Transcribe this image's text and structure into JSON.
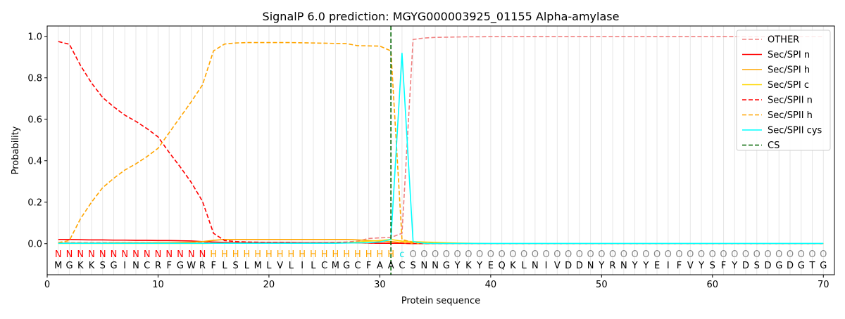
{
  "chart_data": {
    "type": "line",
    "title": "SignalP 6.0 prediction: MGYG000003925_01155 Alpha-amylase",
    "xlabel": "Protein sequence",
    "ylabel": "Probability",
    "xlim": [
      0,
      71
    ],
    "ylim": [
      -0.15,
      1.05
    ],
    "xticks": [
      0,
      10,
      20,
      30,
      40,
      50,
      60,
      70
    ],
    "yticks": [
      0.0,
      0.2,
      0.4,
      0.6,
      0.8,
      1.0
    ],
    "ytick_labels": [
      "0.0",
      "0.2",
      "0.4",
      "0.6",
      "0.8",
      "1.0"
    ],
    "grid": "vertical lines at each residue",
    "legend_position": "top-right",
    "sequence": [
      "M",
      "G",
      "K",
      "K",
      "S",
      "G",
      "I",
      "N",
      "C",
      "R",
      "F",
      "G",
      "W",
      "R",
      "F",
      "L",
      "S",
      "L",
      "M",
      "L",
      "V",
      "L",
      "I",
      "L",
      "C",
      "M",
      "G",
      "C",
      "F",
      "A",
      "A",
      "C",
      "S",
      "N",
      "N",
      "G",
      "Y",
      "K",
      "Y",
      "E",
      "Q",
      "K",
      "L",
      "N",
      "I",
      "V",
      "D",
      "D",
      "N",
      "Y",
      "R",
      "N",
      "Y",
      "Y",
      "E",
      "I",
      "F",
      "V",
      "Y",
      "S",
      "F",
      "Y",
      "D",
      "S",
      "D",
      "G",
      "D",
      "G",
      "T",
      "G"
    ],
    "region_labels": [
      "N",
      "N",
      "N",
      "N",
      "N",
      "N",
      "N",
      "N",
      "N",
      "N",
      "N",
      "N",
      "N",
      "N",
      "H",
      "H",
      "H",
      "H",
      "H",
      "H",
      "H",
      "H",
      "H",
      "H",
      "H",
      "H",
      "H",
      "H",
      "H",
      "H",
      "H",
      "C",
      "O",
      "O",
      "O",
      "O",
      "O",
      "O",
      "O",
      "O",
      "O",
      "O",
      "O",
      "O",
      "O",
      "O",
      "O",
      "O",
      "O",
      "O",
      "O",
      "O",
      "O",
      "O",
      "O",
      "O",
      "O",
      "O",
      "O",
      "O",
      "O",
      "O",
      "O",
      "O",
      "O",
      "O",
      "O",
      "O",
      "O",
      "O"
    ],
    "region_colors": {
      "N": "#ff0000",
      "H": "#ffa500",
      "C": "#00e5e5",
      "O": "#888888"
    },
    "cleavage_site": 31,
    "series": [
      {
        "name": "OTHER",
        "color": "#f08080",
        "dash": "dashed",
        "values": [
          0.005,
          0.005,
          0.005,
          0.005,
          0.005,
          0.005,
          0.005,
          0.005,
          0.005,
          0.005,
          0.005,
          0.005,
          0.005,
          0.005,
          0.005,
          0.005,
          0.005,
          0.005,
          0.005,
          0.005,
          0.005,
          0.005,
          0.005,
          0.005,
          0.005,
          0.006,
          0.008,
          0.012,
          0.025,
          0.028,
          0.03,
          0.05,
          0.985,
          0.992,
          0.995,
          0.996,
          0.997,
          0.998,
          0.998,
          0.999,
          0.999,
          0.999,
          0.999,
          0.999,
          0.999,
          0.999,
          0.999,
          0.999,
          0.999,
          0.999,
          0.999,
          0.999,
          0.999,
          0.999,
          0.999,
          0.999,
          0.999,
          0.999,
          0.999,
          0.999,
          0.999,
          0.999,
          0.999,
          0.999,
          0.999,
          0.999,
          0.999,
          0.999,
          0.999,
          0.999
        ]
      },
      {
        "name": "Sec/SPI n",
        "color": "#ff0000",
        "dash": "solid",
        "values": [
          0.02,
          0.02,
          0.019,
          0.018,
          0.018,
          0.017,
          0.017,
          0.016,
          0.016,
          0.015,
          0.015,
          0.014,
          0.013,
          0.01,
          0.008,
          0.006,
          0.005,
          0.005,
          0.005,
          0.005,
          0.005,
          0.005,
          0.005,
          0.005,
          0.005,
          0.005,
          0.005,
          0.004,
          0.003,
          0.002,
          0.002,
          0.002,
          0,
          0,
          0,
          0,
          0,
          0,
          0,
          0,
          0,
          0,
          0,
          0,
          0,
          0,
          0,
          0,
          0,
          0,
          0,
          0,
          0,
          0,
          0,
          0,
          0,
          0,
          0,
          0,
          0,
          0,
          0,
          0,
          0,
          0,
          0,
          0,
          0,
          0
        ]
      },
      {
        "name": "Sec/SPI h",
        "color": "#ffa500",
        "dash": "solid",
        "values": [
          0.003,
          0.003,
          0.003,
          0.003,
          0.003,
          0.004,
          0.004,
          0.004,
          0.004,
          0.005,
          0.005,
          0.006,
          0.007,
          0.01,
          0.016,
          0.02,
          0.02,
          0.02,
          0.02,
          0.02,
          0.02,
          0.02,
          0.02,
          0.02,
          0.02,
          0.02,
          0.02,
          0.018,
          0.015,
          0.012,
          0.01,
          0.005,
          0.002,
          0,
          0,
          0,
          0,
          0,
          0,
          0,
          0,
          0,
          0,
          0,
          0,
          0,
          0,
          0,
          0,
          0,
          0,
          0,
          0,
          0,
          0,
          0,
          0,
          0,
          0,
          0,
          0,
          0,
          0,
          0,
          0,
          0,
          0,
          0,
          0,
          0
        ]
      },
      {
        "name": "Sec/SPI c",
        "color": "#ffd700",
        "dash": "solid",
        "values": [
          0.001,
          0.001,
          0.001,
          0.001,
          0.001,
          0.001,
          0.001,
          0.001,
          0.001,
          0.001,
          0.001,
          0.001,
          0.001,
          0.001,
          0.002,
          0.002,
          0.002,
          0.002,
          0.002,
          0.002,
          0.002,
          0.002,
          0.002,
          0.003,
          0.003,
          0.004,
          0.005,
          0.008,
          0.012,
          0.015,
          0.02,
          0.012,
          0.01,
          0.008,
          0.006,
          0.004,
          0.003,
          0.002,
          0.001,
          0,
          0,
          0,
          0,
          0,
          0,
          0,
          0,
          0,
          0,
          0,
          0,
          0,
          0,
          0,
          0,
          0,
          0,
          0,
          0,
          0,
          0,
          0,
          0,
          0,
          0,
          0,
          0,
          0,
          0,
          0
        ]
      },
      {
        "name": "Sec/SPII n",
        "color": "#ff0000",
        "dash": "dashed",
        "values": [
          0.975,
          0.962,
          0.86,
          0.775,
          0.705,
          0.66,
          0.62,
          0.59,
          0.555,
          0.515,
          0.44,
          0.37,
          0.295,
          0.205,
          0.05,
          0.015,
          0.01,
          0.008,
          0.007,
          0.006,
          0.006,
          0.006,
          0.005,
          0.005,
          0.005,
          0.005,
          0.005,
          0.004,
          0.003,
          0.002,
          0.002,
          0.002,
          0,
          0,
          0,
          0,
          0,
          0,
          0,
          0,
          0,
          0,
          0,
          0,
          0,
          0,
          0,
          0,
          0,
          0,
          0,
          0,
          0,
          0,
          0,
          0,
          0,
          0,
          0,
          0,
          0,
          0,
          0,
          0,
          0,
          0,
          0,
          0,
          0,
          0
        ]
      },
      {
        "name": "Sec/SPII h",
        "color": "#ffa500",
        "dash": "dashed",
        "values": [
          0.005,
          0.015,
          0.12,
          0.2,
          0.27,
          0.315,
          0.355,
          0.385,
          0.42,
          0.46,
          0.535,
          0.61,
          0.685,
          0.765,
          0.93,
          0.963,
          0.968,
          0.97,
          0.97,
          0.97,
          0.97,
          0.97,
          0.969,
          0.968,
          0.967,
          0.966,
          0.965,
          0.955,
          0.954,
          0.953,
          0.93,
          0.02,
          0.005,
          0.003,
          0.002,
          0.001,
          0,
          0,
          0,
          0,
          0,
          0,
          0,
          0,
          0,
          0,
          0,
          0,
          0,
          0,
          0,
          0,
          0,
          0,
          0,
          0,
          0,
          0,
          0,
          0,
          0,
          0,
          0,
          0,
          0,
          0,
          0,
          0,
          0,
          0
        ]
      },
      {
        "name": "Sec/SPII cys",
        "color": "#00ffff",
        "dash": "solid",
        "values": [
          0.002,
          0.002,
          0.002,
          0.002,
          0.002,
          0.002,
          0.002,
          0.002,
          0.002,
          0.002,
          0.002,
          0.002,
          0.002,
          0.002,
          0.002,
          0.002,
          0.002,
          0.002,
          0.002,
          0.002,
          0.002,
          0.002,
          0.002,
          0.002,
          0.002,
          0.002,
          0.003,
          0.004,
          0.005,
          0.008,
          0.02,
          0.92,
          0.01,
          0.002,
          0.001,
          0.001,
          0.001,
          0.001,
          0.001,
          0.001,
          0.001,
          0.001,
          0.001,
          0.001,
          0.001,
          0.001,
          0.001,
          0.001,
          0.001,
          0.001,
          0.001,
          0.001,
          0.001,
          0.001,
          0.001,
          0.001,
          0.001,
          0.001,
          0.001,
          0.001,
          0.001,
          0.001,
          0.001,
          0.001,
          0.001,
          0.001,
          0.001,
          0.001,
          0.001,
          0.001
        ]
      },
      {
        "name": "CS",
        "color": "#006400",
        "dash": "dashed",
        "values": []
      }
    ]
  }
}
